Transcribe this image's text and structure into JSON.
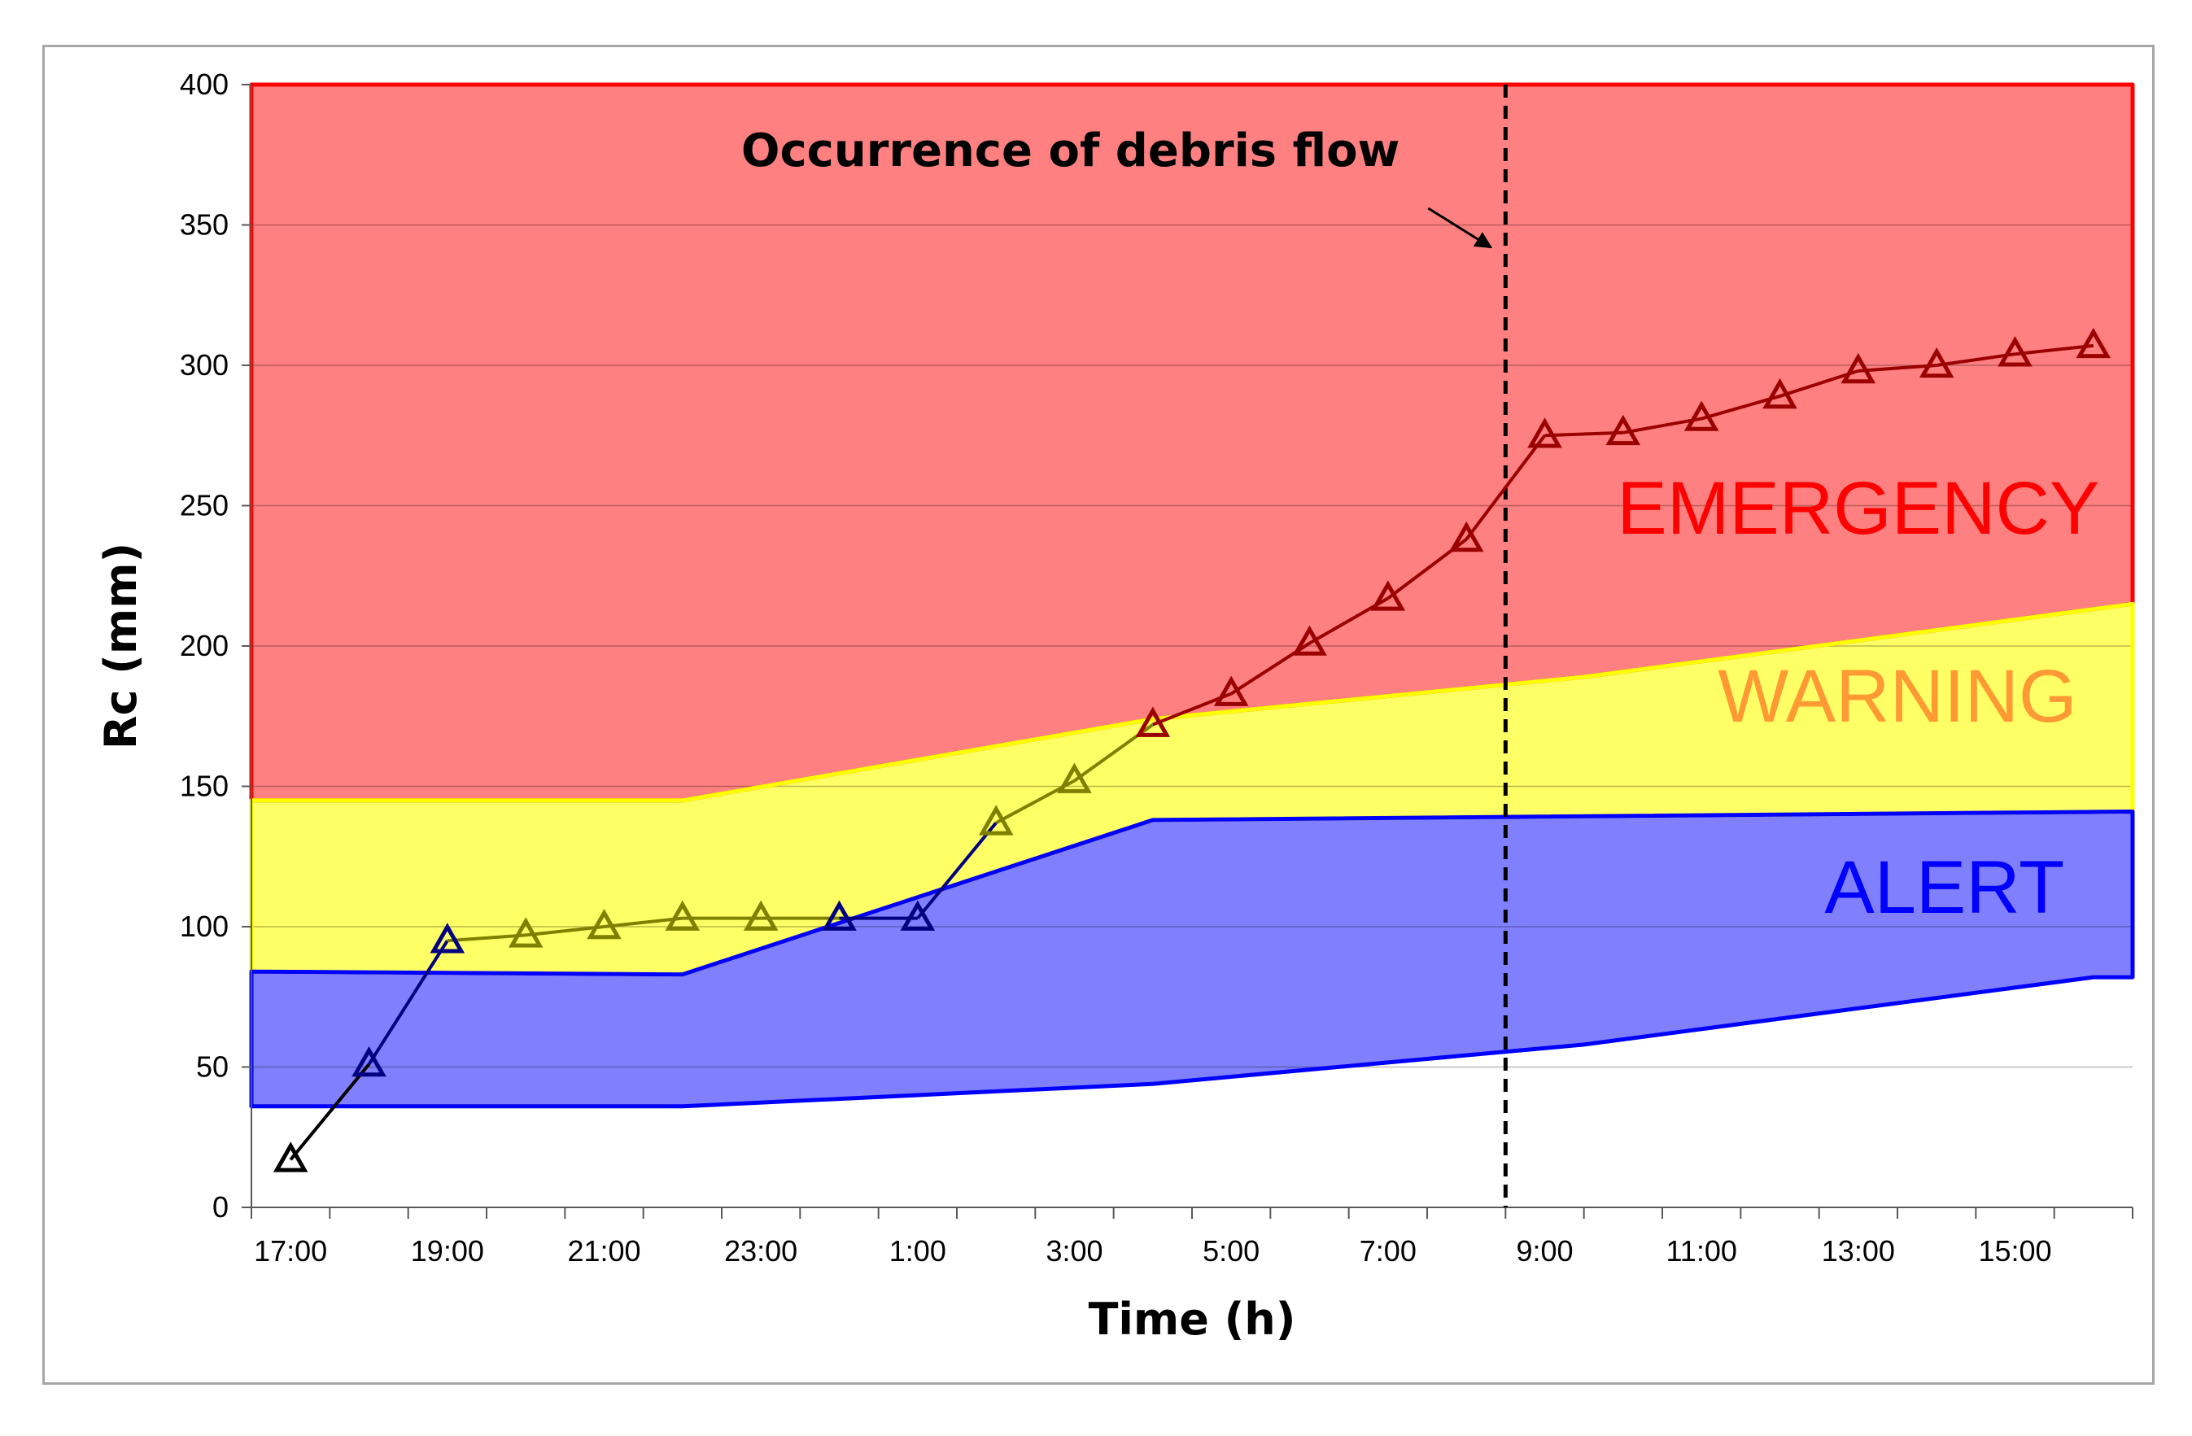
{
  "chart_data": {
    "type": "line",
    "title": "",
    "xlabel": "Time (h)",
    "ylabel": "Rc (mm)",
    "ylim": [
      0,
      400
    ],
    "yticks": [
      0,
      50,
      100,
      150,
      200,
      250,
      300,
      350,
      400
    ],
    "x_index_range": [
      0,
      24
    ],
    "x_tick_labels": [
      "17:00",
      "19:00",
      "21:00",
      "23:00",
      "1:00",
      "3:00",
      "5:00",
      "7:00",
      "9:00",
      "11:00",
      "13:00",
      "15:00"
    ],
    "x_tick_label_indices": [
      0.5,
      2.5,
      4.5,
      6.5,
      8.5,
      10.5,
      12.5,
      14.5,
      16.5,
      18.5,
      20.5,
      22.5
    ],
    "grid": true,
    "zones": [
      {
        "name": "EMERGENCY",
        "label": "EMERGENCY",
        "fill": "#ff8080",
        "stroke": "#ff0000",
        "label_color": "#ff0000",
        "upper": [
          [
            0,
            400
          ],
          [
            24,
            400
          ]
        ],
        "lower": [
          [
            0,
            145
          ],
          [
            5.5,
            145
          ],
          [
            11.5,
            174
          ],
          [
            17,
            189
          ],
          [
            24,
            215
          ]
        ],
        "label_pos": [
          20.5,
          240
        ]
      },
      {
        "name": "WARNING",
        "label": "WARNING",
        "fill": "#ffff66",
        "stroke": "#ffff00",
        "label_color": "#ff9933",
        "upper": [
          [
            0,
            145
          ],
          [
            5.5,
            145
          ],
          [
            11.5,
            174
          ],
          [
            17,
            189
          ],
          [
            24,
            215
          ]
        ],
        "lower": [
          [
            0,
            84
          ],
          [
            5.5,
            83
          ],
          [
            11.5,
            138
          ],
          [
            24,
            141
          ]
        ],
        "label_pos": [
          21,
          173
        ]
      },
      {
        "name": "ALERT",
        "label": "ALERT",
        "fill": "#8080ff",
        "stroke": "#0000ff",
        "label_color": "#0000ff",
        "upper": [
          [
            0,
            84
          ],
          [
            5.5,
            83
          ],
          [
            11.5,
            138
          ],
          [
            24,
            141
          ]
        ],
        "lower": [
          [
            0,
            36
          ],
          [
            5.5,
            36
          ],
          [
            11.5,
            44
          ],
          [
            17,
            58
          ],
          [
            23.5,
            82
          ],
          [
            24,
            82
          ]
        ],
        "label_pos": [
          21.6,
          105
        ]
      }
    ],
    "series": [
      {
        "name": "Rc",
        "x": [
          0.5,
          1.5,
          2.5,
          3.5,
          4.5,
          5.5,
          6.5,
          7.5,
          8.5,
          9.5,
          10.5,
          11.5,
          12.5,
          13.5,
          14.5,
          15.5,
          16.5,
          17.5,
          18.5,
          19.5,
          20.5,
          21.5,
          22.5,
          23.5
        ],
        "values": [
          17,
          51,
          95,
          97,
          100,
          103,
          103,
          103,
          103,
          137,
          152,
          172,
          183,
          201,
          217,
          238,
          275,
          276,
          281,
          289,
          298,
          300,
          304,
          307
        ],
        "marker": "triangle",
        "segment_colors": {
          "alert": "#000080",
          "warning": "#808000",
          "emergency": "#9b0000",
          "start": "#000000"
        }
      }
    ],
    "annotations": [
      {
        "text": "Occurrence of debris flow",
        "line_x": 16.0,
        "line_style": "dashed",
        "color": "#000000"
      }
    ]
  }
}
